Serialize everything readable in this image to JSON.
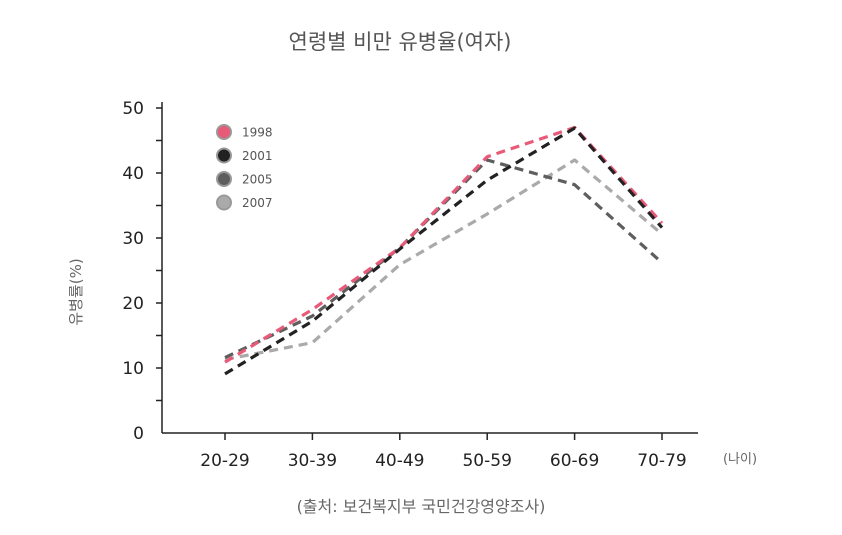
{
  "chart_data": {
    "type": "line",
    "title": "연령별 비만 유병율(여자)",
    "ylabel": "유병률(%)",
    "xunit": "(나이)",
    "source": "(출처: 보건복지부 국민건강영양조사)",
    "categories": [
      "20-29",
      "30-39",
      "40-49",
      "50-59",
      "60-69",
      "70-79"
    ],
    "yticks": [
      "0",
      "10",
      "20",
      "30",
      "40",
      "50"
    ],
    "ylim": [
      0,
      50
    ],
    "grid": false,
    "legend_position": "top-left",
    "series": [
      {
        "name": "1998",
        "color": "#e85a78",
        "values": [
          10.9,
          19.0,
          28.5,
          42.5,
          47.0,
          32.3
        ]
      },
      {
        "name": "2001",
        "color": "#222222",
        "values": [
          9.1,
          17.2,
          28.3,
          38.9,
          46.9,
          31.6
        ]
      },
      {
        "name": "2005",
        "color": "#5e5e5e",
        "values": [
          11.6,
          18.0,
          28.5,
          42.0,
          38.2,
          26.2
        ]
      },
      {
        "name": "2007",
        "color": "#aaaaaa",
        "values": [
          11.3,
          13.9,
          25.9,
          33.7,
          42.0,
          30.6
        ]
      }
    ]
  }
}
